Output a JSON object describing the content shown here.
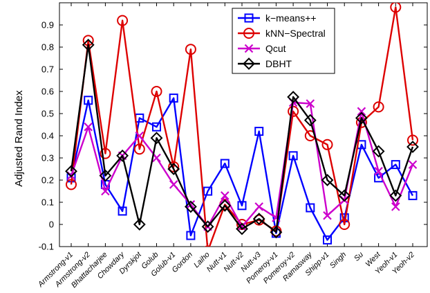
{
  "chart_data": {
    "type": "line",
    "title": "",
    "xlabel": "",
    "ylabel": "Adjusted Rand Index",
    "ylim": [
      -0.1,
      1.0
    ],
    "yticks": [
      "-0.1",
      "0",
      "0.1",
      "0.2",
      "0.3",
      "0.4",
      "0.5",
      "0.6",
      "0.7",
      "0.8",
      "0.9"
    ],
    "grid": false,
    "legend_position": "top-right",
    "categories": [
      "Armstrong-v1",
      "Armstrong-v2",
      "Bhattacharjee",
      "Chowdary",
      "Dyrskjot",
      "Golub",
      "Golub-v1",
      "Gordon",
      "Laiho",
      "Nutt-v1",
      "Nutt-v2",
      "Nutt-v3",
      "Pomeroy-v1",
      "Pomeroy-v2",
      "Ramasway",
      "Shipp-v1",
      "Singh",
      "Su",
      "West",
      "Yeoh-v1",
      "Yeoh-v2"
    ],
    "series": [
      {
        "name": "k−means++",
        "color": "#0000ff",
        "marker": "square",
        "values": [
          0.21,
          0.56,
          0.18,
          0.06,
          0.48,
          0.44,
          0.57,
          -0.05,
          0.15,
          0.275,
          0.085,
          0.42,
          -0.04,
          0.31,
          0.075,
          -0.07,
          0.03,
          0.36,
          0.21,
          0.27,
          0.13
        ]
      },
      {
        "name": "kNN−Spectral",
        "color": "#dd0000",
        "marker": "circle",
        "values": [
          0.18,
          0.83,
          0.32,
          0.92,
          0.34,
          0.6,
          0.26,
          0.79,
          -0.12,
          0.09,
          0.0,
          0.02,
          -0.03,
          0.51,
          0.4,
          0.36,
          0.0,
          0.46,
          0.53,
          0.98,
          0.38
        ]
      },
      {
        "name": "Qcut",
        "color": "#cc00cc",
        "marker": "x",
        "values": [
          0.22,
          0.44,
          0.15,
          0.31,
          0.4,
          0.3,
          0.18,
          0.09,
          -0.01,
          0.13,
          -0.01,
          0.08,
          0.03,
          0.55,
          0.545,
          0.04,
          0.11,
          0.51,
          0.24,
          0.08,
          0.27
        ]
      },
      {
        "name": "DBHT",
        "color": "#000000",
        "marker": "diamond",
        "values": [
          0.24,
          0.81,
          0.22,
          0.31,
          0.0,
          0.39,
          0.25,
          0.08,
          -0.01,
          0.085,
          -0.02,
          0.025,
          -0.035,
          0.575,
          0.47,
          0.2,
          0.13,
          0.48,
          0.33,
          0.13,
          0.35
        ]
      }
    ]
  }
}
